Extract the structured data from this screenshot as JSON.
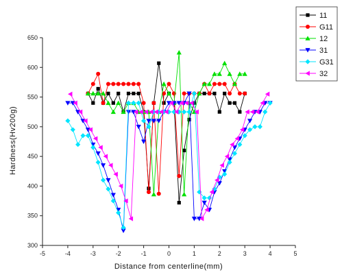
{
  "chart_data": {
    "type": "line",
    "xlabel": "Distance from centerline(mm)",
    "ylabel": "Hardness(Hv200g)",
    "xlim": [
      -5,
      5
    ],
    "ylim": [
      300,
      650
    ],
    "xticks": [
      -5,
      -4,
      -3,
      -2,
      -1,
      0,
      1,
      2,
      3,
      4,
      5
    ],
    "yticks": [
      300,
      350,
      400,
      450,
      500,
      550,
      600,
      650
    ],
    "legend_position": "top-right",
    "series": [
      {
        "name": "11",
        "color": "#000000",
        "marker": "square",
        "x": [
          -3.2,
          -3.0,
          -2.8,
          -2.6,
          -2.4,
          -2.2,
          -2.0,
          -1.8,
          -1.6,
          -1.4,
          -1.2,
          -1.0,
          -0.8,
          -0.6,
          -0.4,
          -0.2,
          0.0,
          0.2,
          0.4,
          0.6,
          0.8,
          1.0,
          1.2,
          1.4,
          1.6,
          1.8,
          2.0,
          2.2,
          2.4,
          2.6,
          2.8,
          3.0
        ],
        "y": [
          556,
          540,
          564,
          540,
          556,
          540,
          556,
          525,
          556,
          556,
          556,
          525,
          396,
          540,
          607,
          540,
          556,
          540,
          372,
          460,
          512,
          540,
          556,
          556,
          556,
          556,
          525,
          556,
          540,
          540,
          525,
          556
        ]
      },
      {
        "name": "G11",
        "color": "#ff0000",
        "marker": "circle",
        "x": [
          -3.2,
          -3.0,
          -2.8,
          -2.6,
          -2.4,
          -2.2,
          -2.0,
          -1.8,
          -1.6,
          -1.4,
          -1.2,
          -1.0,
          -0.8,
          -0.6,
          -0.4,
          -0.2,
          0.0,
          0.2,
          0.4,
          0.6,
          0.8,
          1.0,
          1.2,
          1.4,
          1.6,
          1.8,
          2.0,
          2.2,
          2.4,
          2.6,
          2.8,
          3.0
        ],
        "y": [
          556,
          572,
          589,
          540,
          572,
          572,
          572,
          572,
          572,
          572,
          572,
          540,
          390,
          540,
          387,
          556,
          572,
          556,
          417,
          556,
          556,
          556,
          556,
          572,
          556,
          572,
          572,
          572,
          556,
          572,
          556,
          556
        ]
      },
      {
        "name": "12",
        "color": "#00e000",
        "marker": "triangle-up",
        "x": [
          -3.2,
          -3.0,
          -2.8,
          -2.6,
          -2.4,
          -2.2,
          -2.0,
          -1.8,
          -1.6,
          -1.4,
          -1.2,
          -1.0,
          -0.8,
          -0.6,
          -0.4,
          -0.2,
          0.0,
          0.2,
          0.4,
          0.6,
          0.8,
          1.0,
          1.2,
          1.4,
          1.6,
          1.8,
          2.0,
          2.2,
          2.4,
          2.6,
          2.8,
          3.0
        ],
        "y": [
          556,
          556,
          556,
          556,
          540,
          525,
          540,
          525,
          540,
          540,
          525,
          525,
          525,
          386,
          525,
          572,
          556,
          540,
          625,
          386,
          540,
          525,
          556,
          572,
          572,
          589,
          589,
          607,
          589,
          572,
          589,
          589
        ]
      },
      {
        "name": "31",
        "color": "#0000ff",
        "marker": "triangle-down",
        "x": [
          -4.0,
          -3.8,
          -3.6,
          -3.4,
          -3.2,
          -3.0,
          -2.8,
          -2.6,
          -2.4,
          -2.2,
          -2.0,
          -1.8,
          -1.6,
          -1.4,
          -1.2,
          -1.0,
          -0.8,
          -0.6,
          -0.4,
          -0.2,
          0.0,
          0.2,
          0.4,
          0.6,
          0.8,
          1.0,
          1.2,
          1.4,
          1.6,
          1.8,
          2.0,
          2.2,
          2.4,
          2.6,
          2.8,
          3.0,
          3.2,
          3.4,
          3.6,
          3.8,
          4.0
        ],
        "y": [
          540,
          540,
          525,
          510,
          495,
          470,
          455,
          435,
          410,
          385,
          360,
          325,
          525,
          525,
          500,
          475,
          510,
          510,
          510,
          525,
          540,
          540,
          540,
          540,
          556,
          345,
          345,
          372,
          360,
          390,
          405,
          425,
          445,
          465,
          480,
          495,
          510,
          525,
          525,
          540,
          540
        ]
      },
      {
        "name": "G31",
        "color": "#00e5ff",
        "marker": "diamond",
        "x": [
          -4.0,
          -3.8,
          -3.6,
          -3.4,
          -3.2,
          -3.0,
          -2.8,
          -2.6,
          -2.4,
          -2.2,
          -2.0,
          -1.8,
          -1.6,
          -1.4,
          -1.2,
          -1.0,
          -0.8,
          -0.6,
          -0.4,
          -0.2,
          0.0,
          0.2,
          0.4,
          0.6,
          0.8,
          1.0,
          1.2,
          1.4,
          1.6,
          1.8,
          2.0,
          2.2,
          2.4,
          2.6,
          2.8,
          3.0,
          3.2,
          3.4,
          3.6,
          3.8,
          4.0
        ],
        "y": [
          510,
          495,
          470,
          485,
          485,
          465,
          440,
          410,
          395,
          375,
          355,
          330,
          540,
          540,
          540,
          510,
          500,
          525,
          525,
          525,
          525,
          525,
          525,
          525,
          525,
          556,
          390,
          380,
          380,
          395,
          415,
          420,
          440,
          455,
          470,
          485,
          495,
          500,
          500,
          525,
          540
        ]
      },
      {
        "name": "32",
        "color": "#ff00ff",
        "marker": "triangle-left",
        "x": [
          -3.9,
          -3.7,
          -3.5,
          -3.3,
          -3.1,
          -2.9,
          -2.7,
          -2.5,
          -2.3,
          -2.1,
          -1.9,
          -1.7,
          -1.5,
          -1.3,
          -1.1,
          -0.9,
          -0.7,
          -0.5,
          -0.3,
          -0.1,
          0.1,
          0.3,
          0.5,
          0.7,
          0.9,
          1.1,
          1.3,
          1.5,
          1.7,
          1.9,
          2.1,
          2.3,
          2.5,
          2.7,
          2.9,
          3.1,
          3.3,
          3.5,
          3.7,
          3.9
        ],
        "y": [
          555,
          540,
          525,
          510,
          495,
          480,
          465,
          450,
          435,
          420,
          400,
          375,
          345,
          525,
          525,
          525,
          525,
          525,
          525,
          525,
          540,
          525,
          540,
          540,
          540,
          525,
          345,
          360,
          390,
          410,
          435,
          450,
          470,
          480,
          495,
          525,
          525,
          525,
          540,
          555
        ]
      }
    ]
  }
}
